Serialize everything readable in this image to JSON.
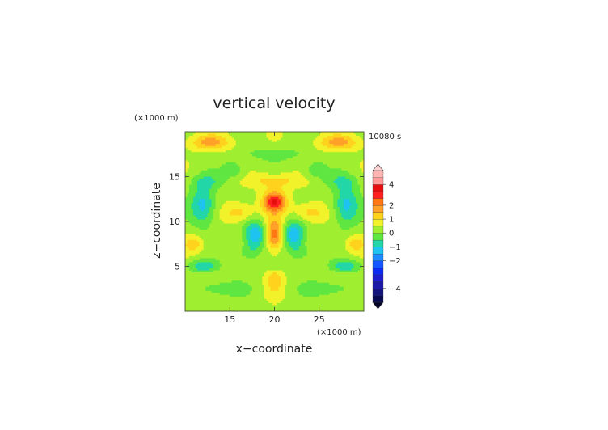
{
  "chart_data": {
    "type": "heatmap",
    "title": "vertical velocity",
    "xlabel": "x−coordinate",
    "ylabel": "z−coordinate",
    "x_unit": "(×1000 m)",
    "y_unit": "(×1000 m)",
    "time_label": "10080 s",
    "xlim": [
      10,
      30
    ],
    "ylim": [
      0,
      20
    ],
    "x_ticks": [
      15,
      20,
      25
    ],
    "y_ticks": [
      5,
      10,
      15
    ],
    "x_tick_labels": [
      "15",
      "20",
      "25"
    ],
    "y_tick_labels": [
      "5",
      "10",
      "15"
    ],
    "colorbar": {
      "levels": [
        -5,
        -4.5,
        -4,
        -3.5,
        -3,
        -2.5,
        -2,
        -1.5,
        -1,
        -0.5,
        0,
        0.5,
        1,
        1.5,
        2,
        2.5,
        3,
        4,
        5
      ],
      "colors": [
        "#0a0a50",
        "#15157e",
        "#1a1aa6",
        "#1e1ecf",
        "#0e2cf0",
        "#1456ff",
        "#1e8cff",
        "#1ec3f0",
        "#22d6a8",
        "#60e641",
        "#a0ee30",
        "#f2f22a",
        "#ffd21e",
        "#ffa028",
        "#ff7814",
        "#ff2020",
        "#e60f0f",
        "#ff9a9a",
        "#ffb4b4"
      ],
      "label_values": [
        4,
        2,
        1,
        0,
        -1,
        -2,
        -4
      ],
      "labels": [
        "4",
        "2",
        "1",
        "0",
        "−1",
        "−2",
        "−4"
      ]
    },
    "features": [
      {
        "x": 20.0,
        "z": 12.2,
        "w": 2.6,
        "sx": 0.9,
        "sz": 0.8
      },
      {
        "x": 20.0,
        "z": 8.5,
        "w": 2.0,
        "sx": 0.7,
        "sz": 1.3
      },
      {
        "x": 17.8,
        "z": 8.5,
        "w": -1.8,
        "sx": 0.9,
        "sz": 1.1
      },
      {
        "x": 22.2,
        "z": 8.5,
        "w": -1.8,
        "sx": 0.9,
        "sz": 1.1
      },
      {
        "x": 12.0,
        "z": 11.8,
        "w": -1.6,
        "sx": 1.0,
        "sz": 1.6
      },
      {
        "x": 28.0,
        "z": 11.8,
        "w": -1.6,
        "sx": 1.0,
        "sz": 1.6
      },
      {
        "x": 12.0,
        "z": 5.0,
        "w": -1.2,
        "sx": 1.2,
        "sz": 0.5
      },
      {
        "x": 28.0,
        "z": 5.0,
        "w": -1.2,
        "sx": 1.2,
        "sz": 0.5
      },
      {
        "x": 12.8,
        "z": 18.8,
        "w": 1.3,
        "sx": 1.6,
        "sz": 0.6
      },
      {
        "x": 27.2,
        "z": 18.8,
        "w": 1.3,
        "sx": 1.6,
        "sz": 0.6
      },
      {
        "x": 20.0,
        "z": 14.5,
        "w": 1.0,
        "sx": 1.8,
        "sz": 0.6
      },
      {
        "x": 15.5,
        "z": 15.8,
        "w": -0.8,
        "sx": 0.9,
        "sz": 0.7
      },
      {
        "x": 24.5,
        "z": 15.8,
        "w": -0.8,
        "sx": 0.9,
        "sz": 0.7
      },
      {
        "x": 16.0,
        "z": 11.0,
        "w": 1.0,
        "sx": 1.2,
        "sz": 0.8
      },
      {
        "x": 24.0,
        "z": 11.0,
        "w": 1.0,
        "sx": 1.2,
        "sz": 0.8
      },
      {
        "x": 20.0,
        "z": 3.5,
        "w": 1.0,
        "sx": 0.6,
        "sz": 1.0
      },
      {
        "x": 20.0,
        "z": 5.0,
        "w": -0.6,
        "sx": 0.5,
        "sz": 0.5
      },
      {
        "x": 14.0,
        "z": 2.5,
        "w": -0.8,
        "sx": 2.0,
        "sz": 0.6
      },
      {
        "x": 26.0,
        "z": 2.5,
        "w": -0.8,
        "sx": 2.0,
        "sz": 0.6
      },
      {
        "x": 17.0,
        "z": 6.5,
        "w": -0.7,
        "sx": 0.8,
        "sz": 0.6
      },
      {
        "x": 23.0,
        "z": 6.5,
        "w": -0.7,
        "sx": 0.8,
        "sz": 0.6
      },
      {
        "x": 12.5,
        "z": 14.5,
        "w": -0.6,
        "sx": 1.5,
        "sz": 0.6
      },
      {
        "x": 27.5,
        "z": 14.5,
        "w": -0.6,
        "sx": 1.5,
        "sz": 0.6
      },
      {
        "x": 20.0,
        "z": 17.5,
        "w": -0.7,
        "sx": 2.5,
        "sz": 0.5
      },
      {
        "x": 11.0,
        "z": 7.5,
        "w": 0.9,
        "sx": 0.8,
        "sz": 0.7
      },
      {
        "x": 29.0,
        "z": 7.5,
        "w": 0.9,
        "sx": 0.8,
        "sz": 0.7
      }
    ]
  }
}
